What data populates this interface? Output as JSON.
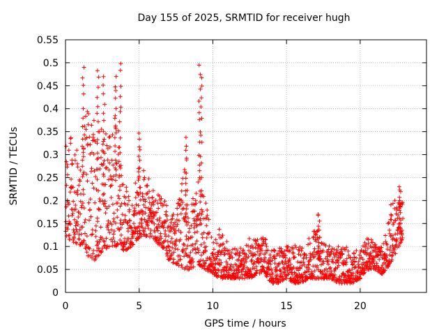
{
  "chart_data": {
    "type": "scatter",
    "title": "Day 155 of 2025, SRMTID for receiver hugh",
    "xlabel": "GPS time / hours",
    "ylabel": "SRMTID / TECUs",
    "xlim": [
      0,
      24.5
    ],
    "ylim": [
      0,
      0.55
    ],
    "xticks": [
      0,
      5,
      10,
      15,
      20
    ],
    "yticks": [
      0,
      0.05,
      0.1,
      0.15,
      0.2,
      0.25,
      0.3,
      0.35,
      0.4,
      0.45,
      0.5,
      0.55
    ],
    "grid": true,
    "marker": "+",
    "color": "#ff0000",
    "series": [
      {
        "name": "SRMTID",
        "envelope": {
          "x": [
            0.0,
            0.5,
            1.0,
            1.5,
            2.0,
            2.5,
            3.0,
            3.5,
            4.0,
            4.5,
            5.0,
            5.5,
            6.0,
            6.5,
            7.0,
            7.5,
            8.0,
            8.5,
            9.0,
            9.5,
            10.0,
            10.5,
            11.0,
            11.5,
            12.0,
            12.5,
            13.0,
            13.5,
            14.0,
            14.5,
            15.0,
            15.5,
            16.0,
            16.5,
            17.0,
            17.5,
            18.0,
            18.5,
            19.0,
            19.5,
            20.0,
            20.5,
            21.0,
            21.5,
            22.0,
            22.5,
            22.9
          ],
          "low": [
            0.12,
            0.11,
            0.1,
            0.08,
            0.07,
            0.09,
            0.1,
            0.1,
            0.09,
            0.1,
            0.12,
            0.12,
            0.11,
            0.1,
            0.07,
            0.06,
            0.05,
            0.05,
            0.06,
            0.05,
            0.04,
            0.03,
            0.03,
            0.03,
            0.03,
            0.03,
            0.04,
            0.04,
            0.02,
            0.02,
            0.03,
            0.02,
            0.02,
            0.03,
            0.03,
            0.03,
            0.03,
            0.02,
            0.02,
            0.02,
            0.03,
            0.05,
            0.05,
            0.04,
            0.06,
            0.09,
            0.12
          ],
          "high": [
            0.36,
            0.33,
            0.3,
            0.42,
            0.38,
            0.36,
            0.34,
            0.42,
            0.24,
            0.2,
            0.3,
            0.26,
            0.22,
            0.22,
            0.18,
            0.17,
            0.28,
            0.2,
            0.3,
            0.2,
            0.12,
            0.14,
            0.11,
            0.1,
            0.1,
            0.12,
            0.12,
            0.12,
            0.09,
            0.1,
            0.1,
            0.11,
            0.1,
            0.12,
            0.14,
            0.11,
            0.1,
            0.1,
            0.1,
            0.09,
            0.1,
            0.12,
            0.11,
            0.1,
            0.19,
            0.21,
            0.2
          ]
        },
        "spikes": [
          {
            "x": 1.2,
            "y": 0.49
          },
          {
            "x": 2.2,
            "y": 0.49
          },
          {
            "x": 2.6,
            "y": 0.47
          },
          {
            "x": 3.4,
            "y": 0.47
          },
          {
            "x": 3.7,
            "y": 0.5
          },
          {
            "x": 5.0,
            "y": 0.35
          },
          {
            "x": 8.2,
            "y": 0.34
          },
          {
            "x": 9.1,
            "y": 0.5
          },
          {
            "x": 9.2,
            "y": 0.47
          },
          {
            "x": 17.2,
            "y": 0.17
          },
          {
            "x": 22.7,
            "y": 0.23
          }
        ]
      }
    ]
  }
}
